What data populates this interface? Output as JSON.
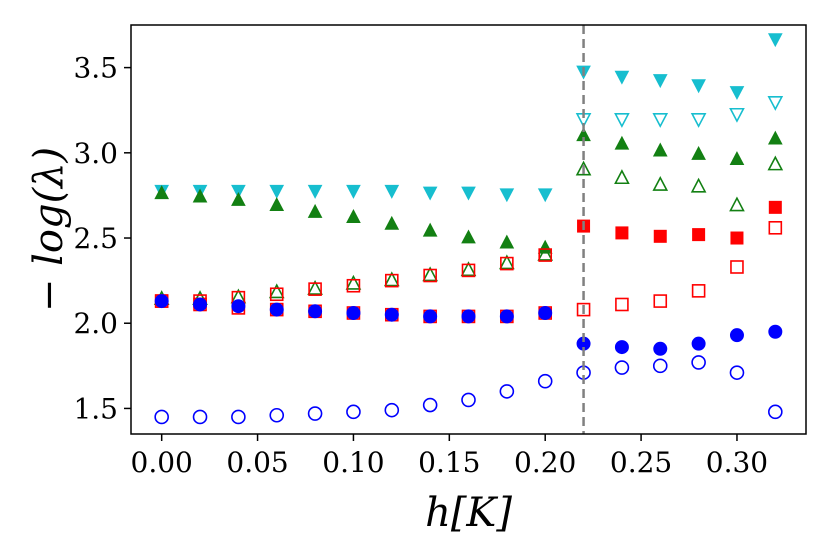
{
  "chart_data": {
    "type": "scatter",
    "title": "",
    "xlabel": "h[K]",
    "ylabel": "− log(λ)",
    "xlim": [
      -0.016,
      0.336
    ],
    "ylim": [
      1.35,
      3.75
    ],
    "xticks": [
      0.0,
      0.05,
      0.1,
      0.15,
      0.2,
      0.25,
      0.3
    ],
    "xtick_labels": [
      "0.00",
      "0.05",
      "0.10",
      "0.15",
      "0.20",
      "0.25",
      "0.30"
    ],
    "yticks": [
      1.5,
      2.0,
      2.5,
      3.0,
      3.5
    ],
    "ytick_labels": [
      "1.5",
      "2.0",
      "2.5",
      "3.0",
      "3.5"
    ],
    "grid": false,
    "vline": {
      "x": 0.22,
      "color": "#808080",
      "style": "dashed"
    },
    "colors": {
      "cyan": "#17becf",
      "green": "#138013",
      "red": "#ff0000",
      "blue": "#0000ff"
    },
    "series": [
      {
        "name": "cyan-filled-down-triangle",
        "marker": "triangle-down",
        "filled": true,
        "color": "#17becf",
        "points": [
          [
            0.0,
            2.78
          ],
          [
            0.02,
            2.78
          ],
          [
            0.04,
            2.78
          ],
          [
            0.06,
            2.78
          ],
          [
            0.08,
            2.78
          ],
          [
            0.1,
            2.78
          ],
          [
            0.12,
            2.78
          ],
          [
            0.14,
            2.77
          ],
          [
            0.16,
            2.77
          ],
          [
            0.18,
            2.76
          ],
          [
            0.2,
            2.76
          ],
          [
            0.22,
            3.48
          ],
          [
            0.24,
            3.45
          ],
          [
            0.26,
            3.43
          ],
          [
            0.28,
            3.4
          ],
          [
            0.3,
            3.36
          ],
          [
            0.32,
            3.67
          ]
        ]
      },
      {
        "name": "cyan-open-down-triangle",
        "marker": "triangle-down",
        "filled": false,
        "color": "#17becf",
        "points": [
          [
            0.22,
            3.2
          ],
          [
            0.24,
            3.2
          ],
          [
            0.26,
            3.2
          ],
          [
            0.28,
            3.2
          ],
          [
            0.3,
            3.23
          ],
          [
            0.32,
            3.3
          ]
        ]
      },
      {
        "name": "green-filled-up-triangle",
        "marker": "triangle-up",
        "filled": true,
        "color": "#138013",
        "points": [
          [
            0.0,
            2.76
          ],
          [
            0.02,
            2.74
          ],
          [
            0.04,
            2.72
          ],
          [
            0.06,
            2.69
          ],
          [
            0.08,
            2.65
          ],
          [
            0.1,
            2.62
          ],
          [
            0.12,
            2.58
          ],
          [
            0.14,
            2.54
          ],
          [
            0.16,
            2.5
          ],
          [
            0.18,
            2.47
          ],
          [
            0.2,
            2.44
          ],
          [
            0.22,
            3.1
          ],
          [
            0.24,
            3.05
          ],
          [
            0.26,
            3.01
          ],
          [
            0.28,
            2.99
          ],
          [
            0.3,
            2.96
          ],
          [
            0.32,
            3.08
          ]
        ]
      },
      {
        "name": "green-open-up-triangle",
        "marker": "triangle-up",
        "filled": false,
        "color": "#138013",
        "points": [
          [
            0.0,
            2.14
          ],
          [
            0.02,
            2.14
          ],
          [
            0.04,
            2.15
          ],
          [
            0.06,
            2.18
          ],
          [
            0.08,
            2.2
          ],
          [
            0.1,
            2.23
          ],
          [
            0.12,
            2.25
          ],
          [
            0.14,
            2.28
          ],
          [
            0.16,
            2.31
          ],
          [
            0.18,
            2.35
          ],
          [
            0.2,
            2.4
          ],
          [
            0.22,
            2.9
          ],
          [
            0.24,
            2.85
          ],
          [
            0.26,
            2.81
          ],
          [
            0.28,
            2.8
          ],
          [
            0.3,
            2.69
          ],
          [
            0.32,
            2.93
          ]
        ]
      },
      {
        "name": "red-filled-square",
        "marker": "square",
        "filled": true,
        "color": "#ff0000",
        "points": [
          [
            0.22,
            2.57
          ],
          [
            0.24,
            2.53
          ],
          [
            0.26,
            2.51
          ],
          [
            0.28,
            2.52
          ],
          [
            0.3,
            2.5
          ],
          [
            0.32,
            2.68
          ]
        ]
      },
      {
        "name": "red-open-square",
        "marker": "square",
        "filled": false,
        "color": "#ff0000",
        "points": [
          [
            0.0,
            2.13
          ],
          [
            0.02,
            2.13
          ],
          [
            0.04,
            2.15
          ],
          [
            0.06,
            2.17
          ],
          [
            0.08,
            2.2
          ],
          [
            0.1,
            2.22
          ],
          [
            0.12,
            2.25
          ],
          [
            0.14,
            2.28
          ],
          [
            0.16,
            2.31
          ],
          [
            0.18,
            2.35
          ],
          [
            0.2,
            2.4
          ],
          [
            0.0,
            2.13
          ],
          [
            0.02,
            2.11
          ],
          [
            0.04,
            2.09
          ],
          [
            0.06,
            2.08
          ],
          [
            0.08,
            2.07
          ],
          [
            0.1,
            2.06
          ],
          [
            0.12,
            2.05
          ],
          [
            0.14,
            2.04
          ],
          [
            0.16,
            2.04
          ],
          [
            0.18,
            2.04
          ],
          [
            0.2,
            2.06
          ],
          [
            0.22,
            2.08
          ],
          [
            0.24,
            2.11
          ],
          [
            0.26,
            2.13
          ],
          [
            0.28,
            2.19
          ],
          [
            0.3,
            2.33
          ],
          [
            0.32,
            2.56
          ]
        ]
      },
      {
        "name": "blue-filled-circle",
        "marker": "circle",
        "filled": true,
        "color": "#0000ff",
        "points": [
          [
            0.0,
            2.13
          ],
          [
            0.02,
            2.11
          ],
          [
            0.04,
            2.1
          ],
          [
            0.06,
            2.08
          ],
          [
            0.08,
            2.07
          ],
          [
            0.1,
            2.06
          ],
          [
            0.12,
            2.05
          ],
          [
            0.14,
            2.04
          ],
          [
            0.16,
            2.04
          ],
          [
            0.18,
            2.04
          ],
          [
            0.2,
            2.06
          ],
          [
            0.22,
            1.88
          ],
          [
            0.24,
            1.86
          ],
          [
            0.26,
            1.85
          ],
          [
            0.28,
            1.88
          ],
          [
            0.3,
            1.93
          ],
          [
            0.32,
            1.95
          ]
        ]
      },
      {
        "name": "blue-open-circle",
        "marker": "circle",
        "filled": false,
        "color": "#0000ff",
        "points": [
          [
            0.0,
            1.45
          ],
          [
            0.02,
            1.45
          ],
          [
            0.04,
            1.45
          ],
          [
            0.06,
            1.46
          ],
          [
            0.08,
            1.47
          ],
          [
            0.1,
            1.48
          ],
          [
            0.12,
            1.49
          ],
          [
            0.14,
            1.52
          ],
          [
            0.16,
            1.55
          ],
          [
            0.18,
            1.6
          ],
          [
            0.2,
            1.66
          ],
          [
            0.22,
            1.71
          ],
          [
            0.24,
            1.74
          ],
          [
            0.26,
            1.75
          ],
          [
            0.28,
            1.77
          ],
          [
            0.3,
            1.71
          ],
          [
            0.32,
            1.48
          ]
        ]
      }
    ]
  }
}
